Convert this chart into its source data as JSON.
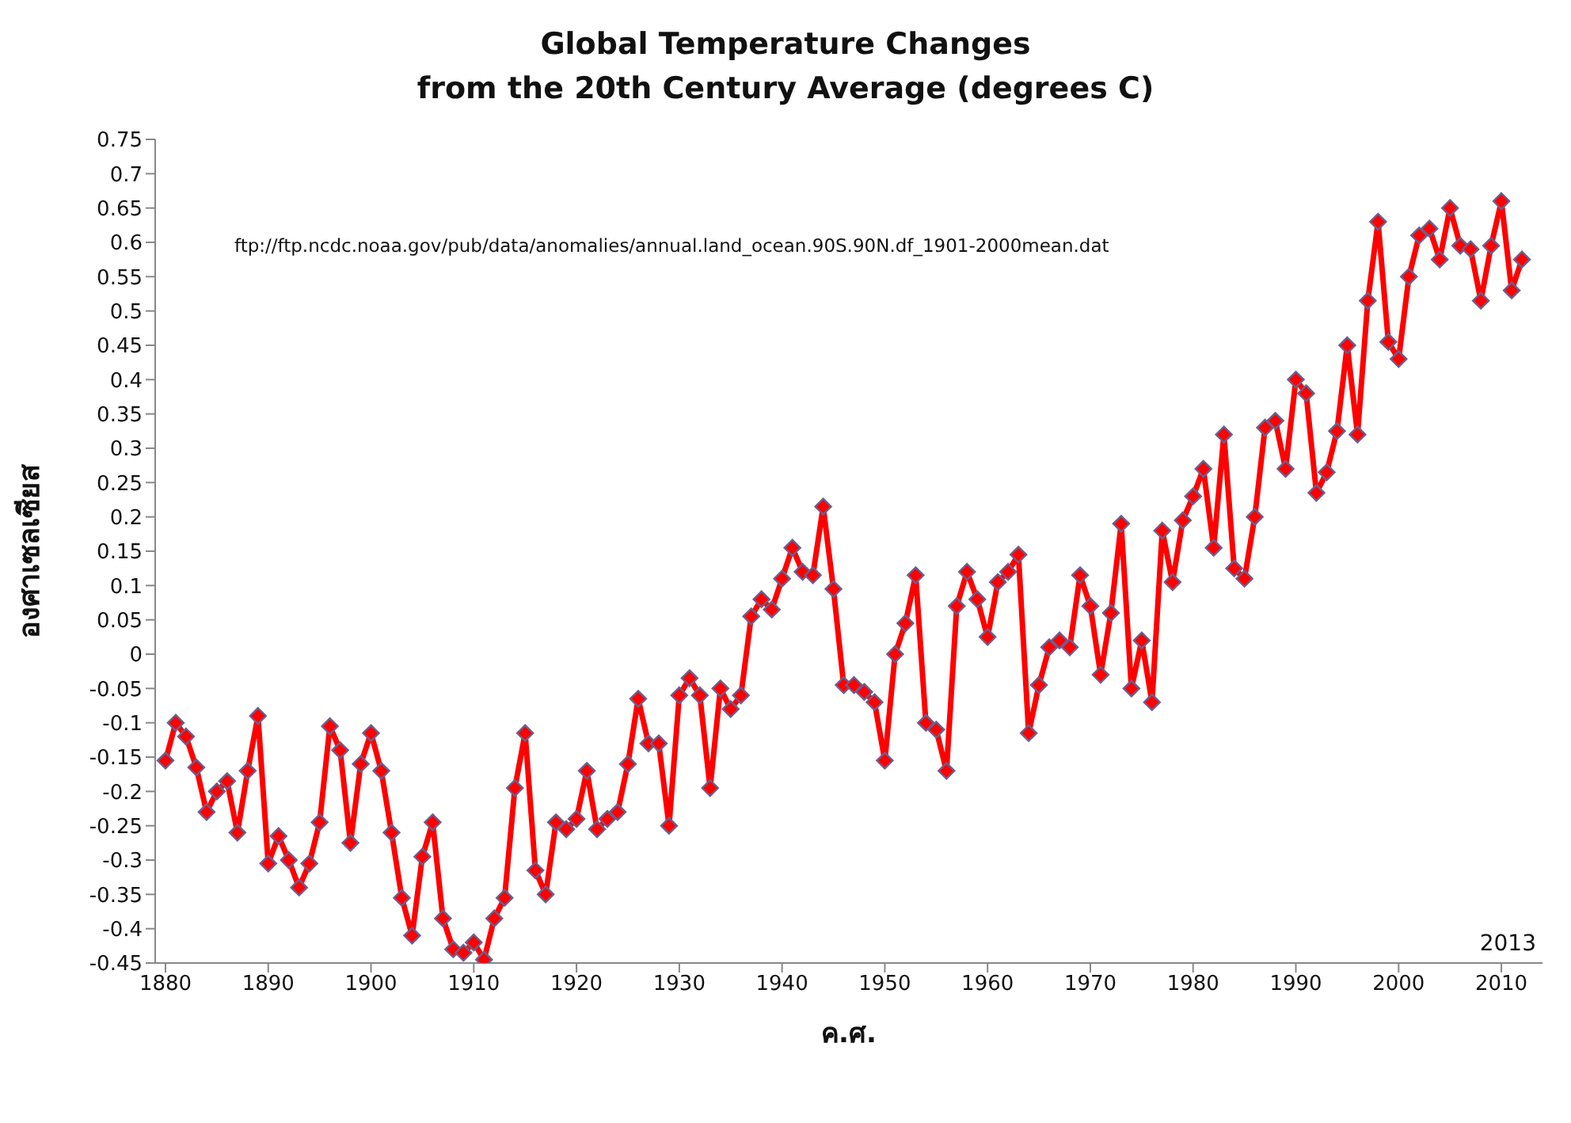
{
  "chart_data": {
    "type": "line",
    "title": "Global Temperature Changes\nfrom the 20th Century Average (degrees C)",
    "xlabel": "ค.ศ.",
    "ylabel": "องศาเซลเซียส",
    "annotations": [
      "ftp://ftp.ncdc.noaa.gov/pub/data/anomalies/annual.land_ocean.90S.90N.df_1901-2000mean.dat",
      "2013"
    ],
    "x": [
      1880,
      1881,
      1882,
      1883,
      1884,
      1885,
      1886,
      1887,
      1888,
      1889,
      1890,
      1891,
      1892,
      1893,
      1894,
      1895,
      1896,
      1897,
      1898,
      1899,
      1900,
      1901,
      1902,
      1903,
      1904,
      1905,
      1906,
      1907,
      1908,
      1909,
      1910,
      1911,
      1912,
      1913,
      1914,
      1915,
      1916,
      1917,
      1918,
      1919,
      1920,
      1921,
      1922,
      1923,
      1924,
      1925,
      1926,
      1927,
      1928,
      1929,
      1930,
      1931,
      1932,
      1933,
      1934,
      1935,
      1936,
      1937,
      1938,
      1939,
      1940,
      1941,
      1942,
      1943,
      1944,
      1945,
      1946,
      1947,
      1948,
      1949,
      1950,
      1951,
      1952,
      1953,
      1954,
      1955,
      1956,
      1957,
      1958,
      1959,
      1960,
      1961,
      1962,
      1963,
      1964,
      1965,
      1966,
      1967,
      1968,
      1969,
      1970,
      1971,
      1972,
      1973,
      1974,
      1975,
      1976,
      1977,
      1978,
      1979,
      1980,
      1981,
      1982,
      1983,
      1984,
      1985,
      1986,
      1987,
      1988,
      1989,
      1990,
      1991,
      1992,
      1993,
      1994,
      1995,
      1996,
      1997,
      1998,
      1999,
      2000,
      2001,
      2002,
      2003,
      2004,
      2005,
      2006,
      2007,
      2008,
      2009,
      2010,
      2011,
      2012
    ],
    "series": [
      {
        "color": "#ff0000",
        "values": [
          -0.155,
          -0.1,
          -0.12,
          -0.165,
          -0.23,
          -0.2,
          -0.185,
          -0.26,
          -0.17,
          -0.09,
          -0.305,
          -0.265,
          -0.3,
          -0.34,
          -0.305,
          -0.245,
          -0.105,
          -0.14,
          -0.275,
          -0.16,
          -0.115,
          -0.17,
          -0.26,
          -0.355,
          -0.41,
          -0.295,
          -0.245,
          -0.385,
          -0.43,
          -0.435,
          -0.42,
          -0.445,
          -0.385,
          -0.355,
          -0.195,
          -0.115,
          -0.315,
          -0.35,
          -0.245,
          -0.255,
          -0.24,
          -0.17,
          -0.255,
          -0.24,
          -0.23,
          -0.16,
          -0.065,
          -0.13,
          -0.13,
          -0.25,
          -0.06,
          -0.035,
          -0.06,
          -0.195,
          -0.05,
          -0.08,
          -0.06,
          0.055,
          0.08,
          0.065,
          0.11,
          0.155,
          0.12,
          0.115,
          0.215,
          0.095,
          -0.045,
          -0.045,
          -0.055,
          -0.07,
          -0.155,
          0,
          0.045,
          0.115,
          -0.1,
          -0.11,
          -0.17,
          0.07,
          0.12,
          0.08,
          0.025,
          0.105,
          0.12,
          0.145,
          -0.115,
          -0.045,
          0.01,
          0.02,
          0.01,
          0.115,
          0.07,
          -0.03,
          0.06,
          0.19,
          -0.05,
          0.02,
          -0.07,
          0.18,
          0.105,
          0.195,
          0.23,
          0.27,
          0.155,
          0.32,
          0.125,
          0.11,
          0.2,
          0.33,
          0.34,
          0.27,
          0.4,
          0.38,
          0.235,
          0.265,
          0.325,
          0.45,
          0.32,
          0.515,
          0.63,
          0.455,
          0.43,
          0.55,
          0.61,
          0.62,
          0.575,
          0.65,
          0.595,
          0.59,
          0.515,
          0.595,
          0.66,
          0.53,
          0.575
        ]
      }
    ],
    "xlim": [
      1879,
      2014
    ],
    "xticks": [
      1880,
      1890,
      1900,
      1910,
      1920,
      1930,
      1940,
      1950,
      1960,
      1970,
      1980,
      1990,
      2000,
      2010
    ],
    "ylim": [
      -0.45,
      0.75
    ],
    "yticks": [
      -0.45,
      -0.4,
      -0.35,
      -0.3,
      -0.25,
      -0.2,
      -0.15,
      -0.1,
      -0.05,
      0,
      0.05,
      0.1,
      0.15,
      0.2,
      0.25,
      0.3,
      0.35,
      0.4,
      0.45,
      0.5,
      0.55,
      0.6,
      0.65,
      0.7,
      0.75
    ],
    "marker": "diamond",
    "line_style": "solid"
  }
}
